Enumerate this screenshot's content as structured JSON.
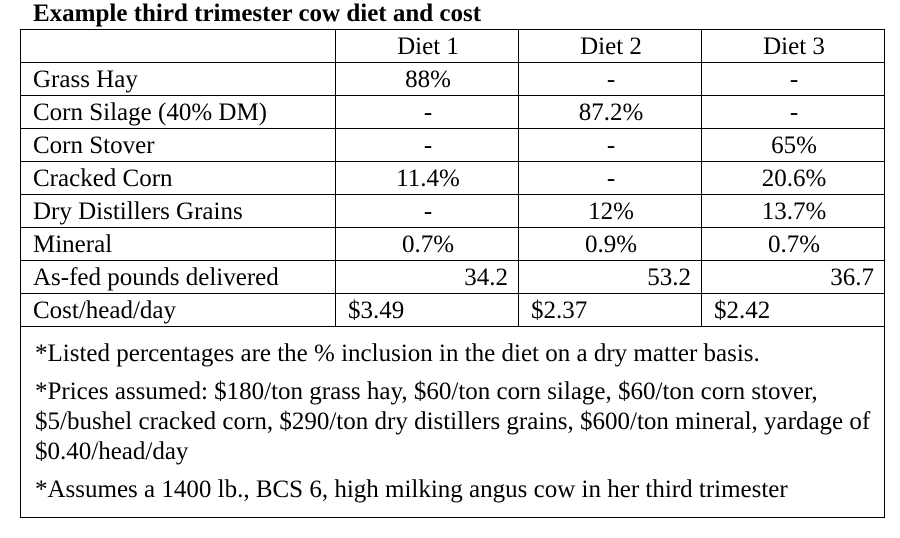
{
  "title": "Example third trimester cow diet and cost",
  "columns": [
    "",
    "Diet 1",
    "Diet 2",
    "Diet 3"
  ],
  "rows": [
    {
      "label": "Grass Hay",
      "values": [
        "88%",
        "-",
        "-"
      ]
    },
    {
      "label": "Corn Silage (40% DM)",
      "values": [
        "-",
        "87.2%",
        "-"
      ]
    },
    {
      "label": "Corn Stover",
      "values": [
        "-",
        "-",
        "65%"
      ]
    },
    {
      "label": "Cracked Corn",
      "values": [
        "11.4%",
        "-",
        "20.6%"
      ]
    },
    {
      "label": "Dry Distillers Grains",
      "values": [
        "-",
        "12%",
        "13.7%"
      ]
    },
    {
      "label": "Mineral",
      "values": [
        "0.7%",
        "0.9%",
        "0.7%"
      ]
    },
    {
      "label": "As-fed pounds delivered",
      "values": [
        "34.2",
        "53.2",
        "36.7"
      ]
    },
    {
      "label": "Cost/head/day",
      "values": [
        "$3.49",
        "$2.37",
        "$2.42"
      ]
    }
  ],
  "notes": [
    "*Listed percentages are the % inclusion in the diet on a dry matter basis.",
    "*Prices assumed: $180/ton grass hay, $60/ton corn silage, $60/ton corn stover, $5/bushel cracked corn, $290/ton dry distillers grains, $600/ton mineral, yardage of $0.40/head/day",
    "*Assumes a 1400 lb., BCS 6, high milking angus cow in her third trimester"
  ]
}
